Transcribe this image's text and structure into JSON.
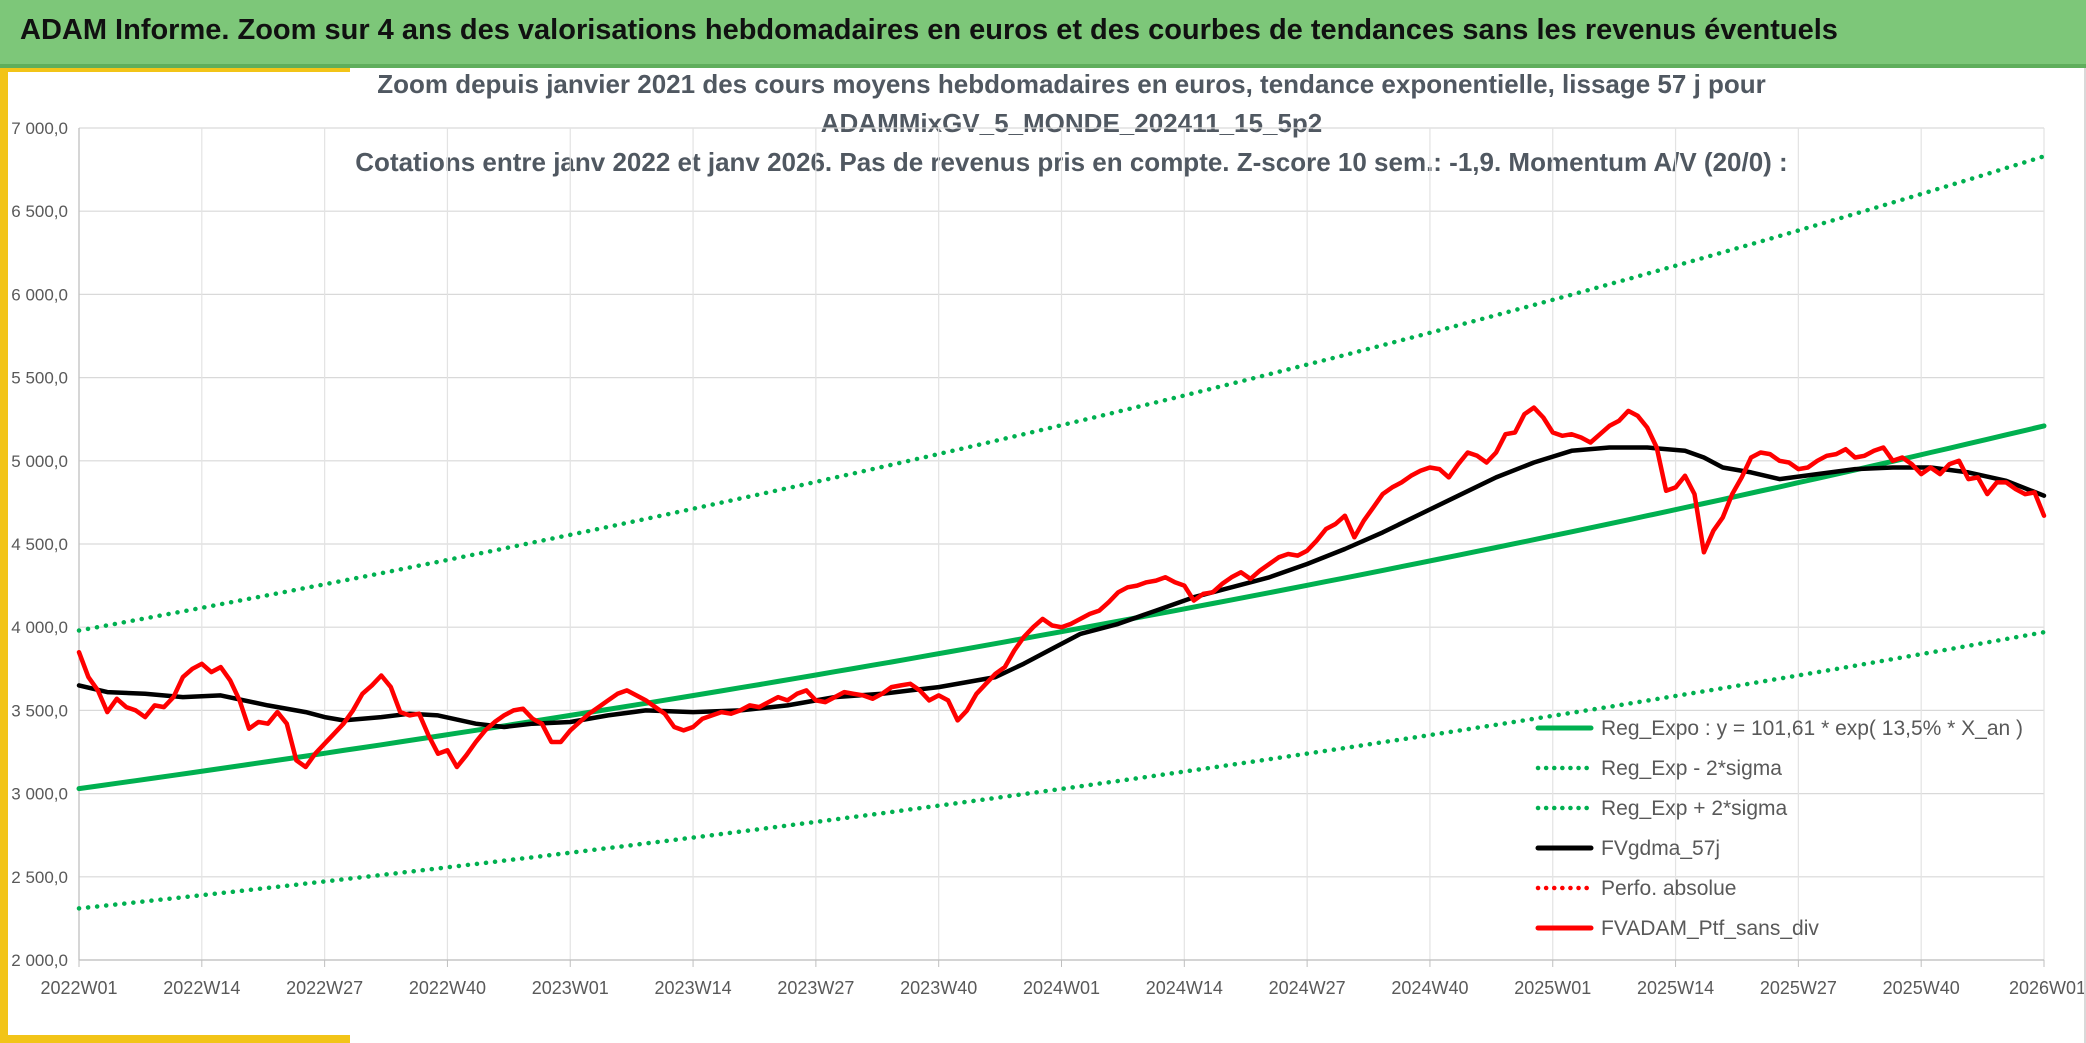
{
  "banner": {
    "title": "ADAM Informe. Zoom sur 4 ans des valorisations hebdomadaires en euros et des courbes de tendances sans les revenus éventuels"
  },
  "colors": {
    "banner": "#7dc779",
    "accent_yellow": "#f2c418",
    "trend_green": "#00b050",
    "smooth_black": "#000000",
    "price_red": "#ff0000"
  },
  "chart_data": {
    "type": "line",
    "title_lines": [
      "Zoom depuis janvier 2021 des cours moyens hebdomadaires en euros, tendance exponentielle, lissage 57 j pour",
      "ADAMMixGV_5_MONDE_202411_15_5p2",
      "Cotations entre janv 2022 et janv 2026. Pas de revenus pris en compte. Z-score 10 sem.: -1,9. Momentum A/V (20/0) :"
    ],
    "ylim": [
      2000,
      7000
    ],
    "yticks": [
      "2 000,0",
      "2 500,0",
      "3 000,0",
      "3 500,0",
      "4 000,0",
      "4 500,0",
      "5 000,0",
      "5 500,0",
      "6 000,0",
      "6 500,0",
      "7 000,0"
    ],
    "xticks": [
      "2022W01",
      "2022W14",
      "2022W27",
      "2022W40",
      "2023W01",
      "2023W14",
      "2023W27",
      "2023W40",
      "2024W01",
      "2024W14",
      "2024W27",
      "2024W40",
      "2025W01",
      "2025W14",
      "2025W27",
      "2025W40",
      "2026W01"
    ],
    "x_range_weeks": [
      0,
      208
    ],
    "grid": true,
    "legend_position": "bottom-right",
    "series": [
      {
        "name": "Reg_Expo : y = 101,61 * exp( 13,5% *  X_an )",
        "color": "#00b050",
        "style": "solid",
        "points": [
          [
            0,
            3030
          ],
          [
            52,
            3460
          ],
          [
            104,
            3950
          ],
          [
            156,
            4510
          ],
          [
            208,
            5210
          ]
        ]
      },
      {
        "name": "Reg_Exp - 2*sigma",
        "color": "#00b050",
        "style": "dotted",
        "points": [
          [
            0,
            2310
          ],
          [
            52,
            2640
          ],
          [
            104,
            3020
          ],
          [
            156,
            3440
          ],
          [
            208,
            3970
          ]
        ]
      },
      {
        "name": "Reg_Exp + 2*sigma",
        "color": "#00b050",
        "style": "dotted",
        "points": [
          [
            0,
            3980
          ],
          [
            52,
            4550
          ],
          [
            104,
            5200
          ],
          [
            156,
            5950
          ],
          [
            208,
            6830
          ]
        ]
      },
      {
        "name": "FVgdma_57j",
        "color": "#000000",
        "style": "solid",
        "points": [
          [
            0,
            3650
          ],
          [
            3,
            3610
          ],
          [
            7,
            3600
          ],
          [
            11,
            3580
          ],
          [
            15,
            3590
          ],
          [
            20,
            3530
          ],
          [
            24,
            3490
          ],
          [
            26,
            3460
          ],
          [
            28,
            3440
          ],
          [
            32,
            3460
          ],
          [
            35,
            3480
          ],
          [
            38,
            3470
          ],
          [
            42,
            3420
          ],
          [
            45,
            3400
          ],
          [
            48,
            3420
          ],
          [
            52,
            3430
          ],
          [
            56,
            3470
          ],
          [
            60,
            3500
          ],
          [
            65,
            3490
          ],
          [
            70,
            3500
          ],
          [
            75,
            3530
          ],
          [
            80,
            3580
          ],
          [
            85,
            3600
          ],
          [
            88,
            3620
          ],
          [
            91,
            3640
          ],
          [
            94,
            3670
          ],
          [
            97,
            3700
          ],
          [
            100,
            3780
          ],
          [
            103,
            3870
          ],
          [
            106,
            3960
          ],
          [
            110,
            4020
          ],
          [
            114,
            4100
          ],
          [
            118,
            4180
          ],
          [
            122,
            4240
          ],
          [
            126,
            4300
          ],
          [
            130,
            4380
          ],
          [
            134,
            4470
          ],
          [
            138,
            4570
          ],
          [
            142,
            4680
          ],
          [
            146,
            4790
          ],
          [
            150,
            4900
          ],
          [
            154,
            4990
          ],
          [
            158,
            5060
          ],
          [
            162,
            5080
          ],
          [
            166,
            5080
          ],
          [
            170,
            5060
          ],
          [
            172,
            5020
          ],
          [
            174,
            4960
          ],
          [
            177,
            4930
          ],
          [
            180,
            4890
          ],
          [
            184,
            4920
          ],
          [
            188,
            4950
          ],
          [
            192,
            4960
          ],
          [
            196,
            4960
          ],
          [
            200,
            4930
          ],
          [
            204,
            4880
          ],
          [
            208,
            4790
          ]
        ]
      },
      {
        "name": "Perfo. absolue",
        "color": "#ff0000",
        "style": "dotted",
        "points": []
      },
      {
        "name": "FVADAM_Ptf_sans_div",
        "color": "#ff0000",
        "style": "solid",
        "points": [
          [
            0,
            3850
          ],
          [
            1,
            3700
          ],
          [
            2,
            3620
          ],
          [
            3,
            3490
          ],
          [
            4,
            3570
          ],
          [
            5,
            3520
          ],
          [
            6,
            3500
          ],
          [
            7,
            3460
          ],
          [
            8,
            3530
          ],
          [
            9,
            3520
          ],
          [
            10,
            3580
          ],
          [
            11,
            3700
          ],
          [
            12,
            3750
          ],
          [
            13,
            3780
          ],
          [
            14,
            3730
          ],
          [
            15,
            3760
          ],
          [
            16,
            3680
          ],
          [
            17,
            3560
          ],
          [
            18,
            3390
          ],
          [
            19,
            3430
          ],
          [
            20,
            3420
          ],
          [
            21,
            3490
          ],
          [
            22,
            3420
          ],
          [
            23,
            3200
          ],
          [
            24,
            3160
          ],
          [
            25,
            3240
          ],
          [
            26,
            3300
          ],
          [
            27,
            3360
          ],
          [
            28,
            3420
          ],
          [
            29,
            3500
          ],
          [
            30,
            3600
          ],
          [
            31,
            3650
          ],
          [
            32,
            3710
          ],
          [
            33,
            3640
          ],
          [
            34,
            3490
          ],
          [
            35,
            3470
          ],
          [
            36,
            3480
          ],
          [
            37,
            3350
          ],
          [
            38,
            3240
          ],
          [
            39,
            3260
          ],
          [
            40,
            3160
          ],
          [
            41,
            3230
          ],
          [
            42,
            3310
          ],
          [
            43,
            3380
          ],
          [
            44,
            3430
          ],
          [
            45,
            3470
          ],
          [
            46,
            3500
          ],
          [
            47,
            3510
          ],
          [
            48,
            3450
          ],
          [
            49,
            3420
          ],
          [
            50,
            3310
          ],
          [
            51,
            3310
          ],
          [
            52,
            3380
          ],
          [
            53,
            3430
          ],
          [
            54,
            3480
          ],
          [
            55,
            3520
          ],
          [
            56,
            3560
          ],
          [
            57,
            3600
          ],
          [
            58,
            3620
          ],
          [
            59,
            3590
          ],
          [
            60,
            3560
          ],
          [
            61,
            3520
          ],
          [
            62,
            3480
          ],
          [
            63,
            3400
          ],
          [
            64,
            3380
          ],
          [
            65,
            3400
          ],
          [
            66,
            3450
          ],
          [
            67,
            3470
          ],
          [
            68,
            3490
          ],
          [
            69,
            3480
          ],
          [
            70,
            3500
          ],
          [
            71,
            3530
          ],
          [
            72,
            3520
          ],
          [
            73,
            3550
          ],
          [
            74,
            3580
          ],
          [
            75,
            3560
          ],
          [
            76,
            3600
          ],
          [
            77,
            3620
          ],
          [
            78,
            3560
          ],
          [
            79,
            3550
          ],
          [
            80,
            3580
          ],
          [
            81,
            3610
          ],
          [
            82,
            3600
          ],
          [
            83,
            3590
          ],
          [
            84,
            3570
          ],
          [
            85,
            3600
          ],
          [
            86,
            3640
          ],
          [
            87,
            3650
          ],
          [
            88,
            3660
          ],
          [
            89,
            3620
          ],
          [
            90,
            3560
          ],
          [
            91,
            3590
          ],
          [
            92,
            3560
          ],
          [
            93,
            3440
          ],
          [
            94,
            3500
          ],
          [
            95,
            3600
          ],
          [
            96,
            3660
          ],
          [
            97,
            3720
          ],
          [
            98,
            3760
          ],
          [
            99,
            3860
          ],
          [
            100,
            3940
          ],
          [
            101,
            4000
          ],
          [
            102,
            4050
          ],
          [
            103,
            4010
          ],
          [
            104,
            4000
          ],
          [
            105,
            4020
          ],
          [
            106,
            4050
          ],
          [
            107,
            4080
          ],
          [
            108,
            4100
          ],
          [
            109,
            4150
          ],
          [
            110,
            4210
          ],
          [
            111,
            4240
          ],
          [
            112,
            4250
          ],
          [
            113,
            4270
          ],
          [
            114,
            4280
          ],
          [
            115,
            4300
          ],
          [
            116,
            4270
          ],
          [
            117,
            4250
          ],
          [
            118,
            4160
          ],
          [
            119,
            4200
          ],
          [
            120,
            4210
          ],
          [
            121,
            4260
          ],
          [
            122,
            4300
          ],
          [
            123,
            4330
          ],
          [
            124,
            4290
          ],
          [
            125,
            4340
          ],
          [
            126,
            4380
          ],
          [
            127,
            4420
          ],
          [
            128,
            4440
          ],
          [
            129,
            4430
          ],
          [
            130,
            4460
          ],
          [
            131,
            4520
          ],
          [
            132,
            4590
          ],
          [
            133,
            4620
          ],
          [
            134,
            4670
          ],
          [
            135,
            4540
          ],
          [
            136,
            4640
          ],
          [
            137,
            4720
          ],
          [
            138,
            4800
          ],
          [
            139,
            4840
          ],
          [
            140,
            4870
          ],
          [
            141,
            4910
          ],
          [
            142,
            4940
          ],
          [
            143,
            4960
          ],
          [
            144,
            4950
          ],
          [
            145,
            4900
          ],
          [
            146,
            4980
          ],
          [
            147,
            5050
          ],
          [
            148,
            5030
          ],
          [
            149,
            4990
          ],
          [
            150,
            5050
          ],
          [
            151,
            5160
          ],
          [
            152,
            5170
          ],
          [
            153,
            5280
          ],
          [
            154,
            5320
          ],
          [
            155,
            5260
          ],
          [
            156,
            5170
          ],
          [
            157,
            5150
          ],
          [
            158,
            5160
          ],
          [
            159,
            5140
          ],
          [
            160,
            5110
          ],
          [
            161,
            5160
          ],
          [
            162,
            5210
          ],
          [
            163,
            5240
          ],
          [
            164,
            5300
          ],
          [
            165,
            5270
          ],
          [
            166,
            5200
          ],
          [
            167,
            5080
          ],
          [
            168,
            4820
          ],
          [
            169,
            4840
          ],
          [
            170,
            4910
          ],
          [
            171,
            4800
          ],
          [
            172,
            4450
          ],
          [
            173,
            4580
          ],
          [
            174,
            4660
          ],
          [
            175,
            4800
          ],
          [
            176,
            4900
          ],
          [
            177,
            5020
          ],
          [
            178,
            5050
          ],
          [
            179,
            5040
          ],
          [
            180,
            5000
          ],
          [
            181,
            4990
          ],
          [
            182,
            4950
          ],
          [
            183,
            4960
          ],
          [
            184,
            5000
          ],
          [
            185,
            5030
          ],
          [
            186,
            5040
          ],
          [
            187,
            5070
          ],
          [
            188,
            5020
          ],
          [
            189,
            5030
          ],
          [
            190,
            5060
          ],
          [
            191,
            5080
          ],
          [
            192,
            5000
          ],
          [
            193,
            5020
          ],
          [
            194,
            4980
          ],
          [
            195,
            4920
          ],
          [
            196,
            4960
          ],
          [
            197,
            4920
          ],
          [
            198,
            4980
          ],
          [
            199,
            5000
          ],
          [
            200,
            4890
          ],
          [
            201,
            4900
          ],
          [
            202,
            4800
          ],
          [
            203,
            4870
          ],
          [
            204,
            4870
          ],
          [
            205,
            4830
          ],
          [
            206,
            4800
          ],
          [
            207,
            4810
          ],
          [
            208,
            4670
          ]
        ]
      }
    ]
  }
}
